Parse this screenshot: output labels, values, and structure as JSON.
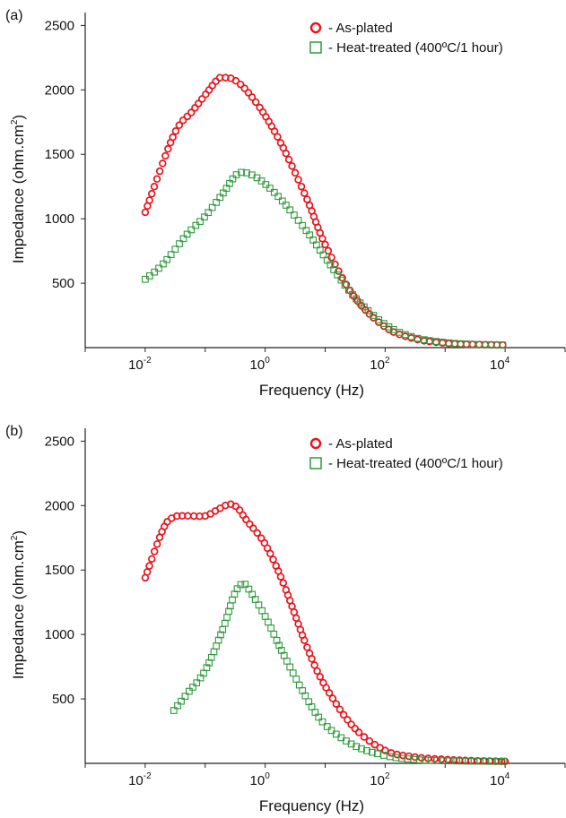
{
  "chart_data": [
    {
      "type": "scatter",
      "panel_label": "(a)",
      "xlabel": "Frequency (Hz)",
      "ylabel_main": "Impedance (ohm.cm",
      "ylabel_sup": "2",
      "ylabel_tail": ")",
      "x_scale": "log",
      "xlim": [
        0.001,
        100000
      ],
      "ylim": [
        0,
        2600
      ],
      "x_ticks": [
        {
          "value": 0.01,
          "base": "10",
          "exp": "-2"
        },
        {
          "value": 1,
          "base": "10",
          "exp": "0"
        },
        {
          "value": 100,
          "base": "10",
          "exp": "2"
        },
        {
          "value": 10000,
          "base": "10",
          "exp": "4"
        }
      ],
      "y_ticks": [
        500,
        1000,
        1500,
        2000,
        2500
      ],
      "legend_position": "top-right",
      "series": [
        {
          "name": "- As-plated",
          "color": "#e8141b",
          "marker": "circle",
          "points": [
            [
              0.01,
              1050
            ],
            [
              0.03,
              1650
            ],
            [
              0.06,
              1830
            ],
            [
              0.1,
              1960
            ],
            [
              0.16,
              2080
            ],
            [
              0.2,
              2095
            ],
            [
              0.3,
              2080
            ],
            [
              0.5,
              1990
            ],
            [
              1,
              1800
            ],
            [
              2,
              1550
            ],
            [
              5,
              1150
            ],
            [
              10,
              800
            ],
            [
              30,
              400
            ],
            [
              100,
              160
            ],
            [
              300,
              70
            ],
            [
              1000,
              35
            ],
            [
              3000,
              25
            ],
            [
              10000,
              20
            ]
          ]
        },
        {
          "name": "- Heat-treated (400ºC/1 hour)",
          "color": "#2e9a3c",
          "marker": "square",
          "points": [
            [
              0.01,
              530
            ],
            [
              0.02,
              650
            ],
            [
              0.05,
              880
            ],
            [
              0.1,
              1020
            ],
            [
              0.2,
              1200
            ],
            [
              0.3,
              1320
            ],
            [
              0.4,
              1360
            ],
            [
              0.6,
              1340
            ],
            [
              1,
              1270
            ],
            [
              2,
              1130
            ],
            [
              5,
              900
            ],
            [
              10,
              700
            ],
            [
              30,
              400
            ],
            [
              100,
              180
            ],
            [
              300,
              80
            ],
            [
              1000,
              40
            ],
            [
              3000,
              25
            ],
            [
              10000,
              20
            ]
          ]
        }
      ]
    },
    {
      "type": "scatter",
      "panel_label": "(b)",
      "xlabel": "Frequency (Hz)",
      "ylabel_main": "Impedance (ohm.cm",
      "ylabel_sup": "2",
      "ylabel_tail": ")",
      "x_scale": "log",
      "xlim": [
        0.001,
        100000
      ],
      "ylim": [
        0,
        2600
      ],
      "x_ticks": [
        {
          "value": 0.01,
          "base": "10",
          "exp": "-2"
        },
        {
          "value": 1,
          "base": "10",
          "exp": "0"
        },
        {
          "value": 100,
          "base": "10",
          "exp": "2"
        },
        {
          "value": 10000,
          "base": "10",
          "exp": "4"
        }
      ],
      "y_ticks": [
        500,
        1000,
        1500,
        2000,
        2500
      ],
      "legend_position": "top-right",
      "series": [
        {
          "name": "- As-plated",
          "color": "#e8141b",
          "marker": "circle",
          "points": [
            [
              0.01,
              1440
            ],
            [
              0.02,
              1820
            ],
            [
              0.03,
              1910
            ],
            [
              0.05,
              1920
            ],
            [
              0.1,
              1920
            ],
            [
              0.15,
              1960
            ],
            [
              0.25,
              2010
            ],
            [
              0.35,
              1980
            ],
            [
              0.5,
              1880
            ],
            [
              1,
              1700
            ],
            [
              2,
              1400
            ],
            [
              5,
              900
            ],
            [
              10,
              600
            ],
            [
              30,
              280
            ],
            [
              100,
              100
            ],
            [
              300,
              50
            ],
            [
              1000,
              30
            ],
            [
              3000,
              20
            ],
            [
              10000,
              15
            ]
          ]
        },
        {
          "name": "- Heat-treated (400ºC/1 hour)",
          "color": "#2e9a3c",
          "marker": "square",
          "points": [
            [
              0.03,
              410
            ],
            [
              0.05,
              540
            ],
            [
              0.1,
              720
            ],
            [
              0.2,
              1050
            ],
            [
              0.3,
              1300
            ],
            [
              0.4,
              1390
            ],
            [
              0.5,
              1370
            ],
            [
              1,
              1140
            ],
            [
              2,
              850
            ],
            [
              5,
              500
            ],
            [
              10,
              300
            ],
            [
              30,
              140
            ],
            [
              100,
              60
            ],
            [
              300,
              30
            ],
            [
              1000,
              20
            ],
            [
              10000,
              15
            ]
          ]
        }
      ]
    }
  ]
}
